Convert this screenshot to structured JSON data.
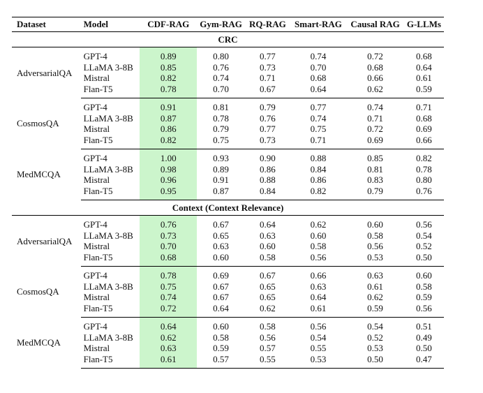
{
  "table": {
    "headers": [
      "Dataset",
      "Model",
      "CDF-RAG",
      "Gym-RAG",
      "RQ-RAG",
      "Smart-RAG",
      "Causal RAG",
      "G-LLMs"
    ],
    "highlight_color": "#ccf5cc",
    "sections": [
      {
        "title": "CRC",
        "groups": [
          {
            "dataset": "AdversarialQA",
            "rows": [
              {
                "model": "GPT-4",
                "values": [
                  "0.89",
                  "0.80",
                  "0.77",
                  "0.74",
                  "0.72",
                  "0.68"
                ]
              },
              {
                "model": "LLaMA 3-8B",
                "values": [
                  "0.85",
                  "0.76",
                  "0.73",
                  "0.70",
                  "0.68",
                  "0.64"
                ]
              },
              {
                "model": "Mistral",
                "values": [
                  "0.82",
                  "0.74",
                  "0.71",
                  "0.68",
                  "0.66",
                  "0.61"
                ]
              },
              {
                "model": "Flan-T5",
                "values": [
                  "0.78",
                  "0.70",
                  "0.67",
                  "0.64",
                  "0.62",
                  "0.59"
                ]
              }
            ]
          },
          {
            "dataset": "CosmosQA",
            "rows": [
              {
                "model": "GPT-4",
                "values": [
                  "0.91",
                  "0.81",
                  "0.79",
                  "0.77",
                  "0.74",
                  "0.71"
                ]
              },
              {
                "model": "LLaMA 3-8B",
                "values": [
                  "0.87",
                  "0.78",
                  "0.76",
                  "0.74",
                  "0.71",
                  "0.68"
                ]
              },
              {
                "model": "Mistral",
                "values": [
                  "0.86",
                  "0.79",
                  "0.77",
                  "0.75",
                  "0.72",
                  "0.69"
                ]
              },
              {
                "model": "Flan-T5",
                "values": [
                  "0.82",
                  "0.75",
                  "0.73",
                  "0.71",
                  "0.69",
                  "0.66"
                ]
              }
            ]
          },
          {
            "dataset": "MedMCQA",
            "rows": [
              {
                "model": "GPT-4",
                "values": [
                  "1.00",
                  "0.93",
                  "0.90",
                  "0.88",
                  "0.85",
                  "0.82"
                ]
              },
              {
                "model": "LLaMA 3-8B",
                "values": [
                  "0.98",
                  "0.89",
                  "0.86",
                  "0.84",
                  "0.81",
                  "0.78"
                ]
              },
              {
                "model": "Mistral",
                "values": [
                  "0.96",
                  "0.91",
                  "0.88",
                  "0.86",
                  "0.83",
                  "0.80"
                ]
              },
              {
                "model": "Flan-T5",
                "values": [
                  "0.95",
                  "0.87",
                  "0.84",
                  "0.82",
                  "0.79",
                  "0.76"
                ]
              }
            ]
          }
        ]
      },
      {
        "title": "Context (Context Relevance)",
        "groups": [
          {
            "dataset": "AdversarialQA",
            "rows": [
              {
                "model": "GPT-4",
                "values": [
                  "0.76",
                  "0.67",
                  "0.64",
                  "0.62",
                  "0.60",
                  "0.56"
                ]
              },
              {
                "model": "LLaMA 3-8B",
                "values": [
                  "0.73",
                  "0.65",
                  "0.63",
                  "0.60",
                  "0.58",
                  "0.54"
                ]
              },
              {
                "model": "Mistral",
                "values": [
                  "0.70",
                  "0.63",
                  "0.60",
                  "0.58",
                  "0.56",
                  "0.52"
                ]
              },
              {
                "model": "Flan-T5",
                "values": [
                  "0.68",
                  "0.60",
                  "0.58",
                  "0.56",
                  "0.53",
                  "0.50"
                ]
              }
            ]
          },
          {
            "dataset": "CosmosQA",
            "rows": [
              {
                "model": "GPT-4",
                "values": [
                  "0.78",
                  "0.69",
                  "0.67",
                  "0.66",
                  "0.63",
                  "0.60"
                ]
              },
              {
                "model": "LLaMA 3-8B",
                "values": [
                  "0.75",
                  "0.67",
                  "0.65",
                  "0.63",
                  "0.61",
                  "0.58"
                ]
              },
              {
                "model": "Mistral",
                "values": [
                  "0.74",
                  "0.67",
                  "0.65",
                  "0.64",
                  "0.62",
                  "0.59"
                ]
              },
              {
                "model": "Flan-T5",
                "values": [
                  "0.72",
                  "0.64",
                  "0.62",
                  "0.61",
                  "0.59",
                  "0.56"
                ]
              }
            ]
          },
          {
            "dataset": "MedMCQA",
            "rows": [
              {
                "model": "GPT-4",
                "values": [
                  "0.64",
                  "0.60",
                  "0.58",
                  "0.56",
                  "0.54",
                  "0.51"
                ]
              },
              {
                "model": "LLaMA 3-8B",
                "values": [
                  "0.62",
                  "0.58",
                  "0.56",
                  "0.54",
                  "0.52",
                  "0.49"
                ]
              },
              {
                "model": "Mistral",
                "values": [
                  "0.63",
                  "0.59",
                  "0.57",
                  "0.55",
                  "0.53",
                  "0.50"
                ]
              },
              {
                "model": "Flan-T5",
                "values": [
                  "0.61",
                  "0.57",
                  "0.55",
                  "0.53",
                  "0.50",
                  "0.47"
                ]
              }
            ]
          }
        ]
      }
    ]
  }
}
